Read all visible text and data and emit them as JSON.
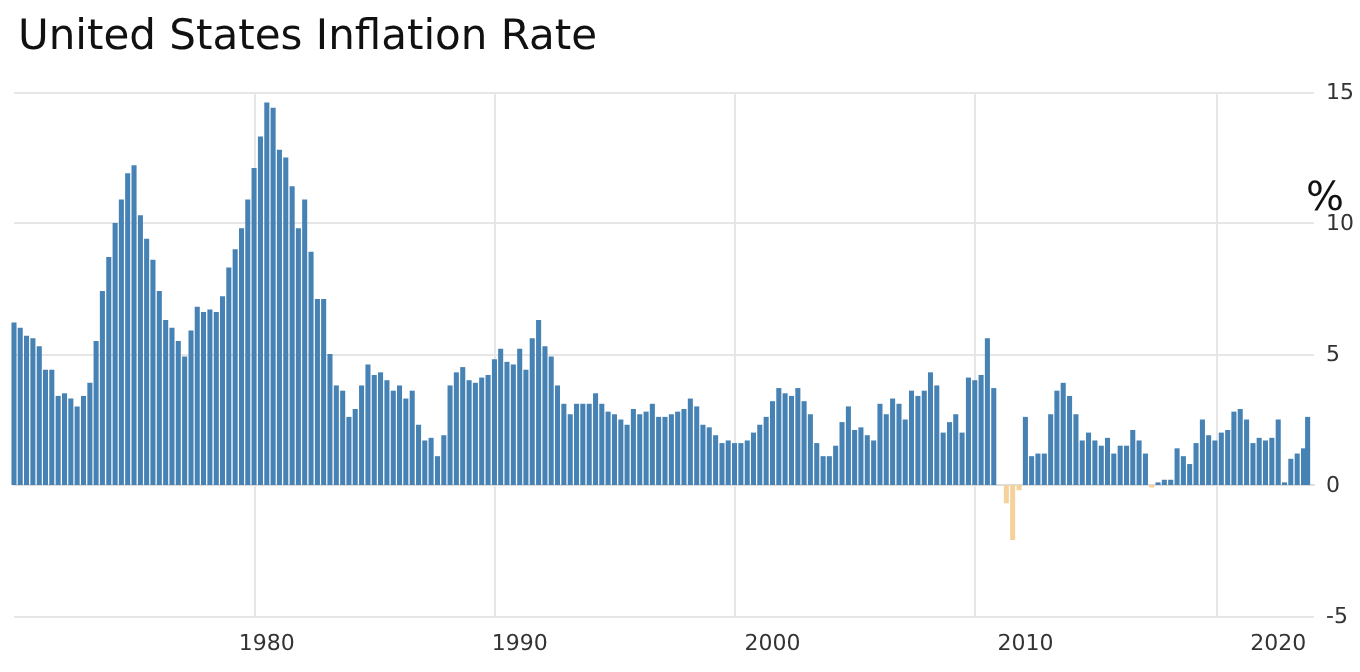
{
  "chart_data": {
    "type": "bar",
    "title": "United States Inflation Rate",
    "ylabel": "%",
    "x": [
      "1970-01",
      "1970-04",
      "1970-07",
      "1970-10",
      "1971-01",
      "1971-04",
      "1971-07",
      "1971-10",
      "1972-01",
      "1972-04",
      "1972-07",
      "1972-10",
      "1973-01",
      "1973-04",
      "1973-07",
      "1973-10",
      "1974-01",
      "1974-04",
      "1974-07",
      "1974-10",
      "1975-01",
      "1975-04",
      "1975-07",
      "1975-10",
      "1976-01",
      "1976-04",
      "1976-07",
      "1976-10",
      "1977-01",
      "1977-04",
      "1977-07",
      "1977-10",
      "1978-01",
      "1978-04",
      "1978-07",
      "1978-10",
      "1979-01",
      "1979-04",
      "1979-07",
      "1979-10",
      "1980-01",
      "1980-04",
      "1980-07",
      "1980-10",
      "1981-01",
      "1981-04",
      "1981-07",
      "1981-10",
      "1982-01",
      "1982-04",
      "1982-07",
      "1982-10",
      "1983-01",
      "1983-04",
      "1983-07",
      "1983-10",
      "1984-01",
      "1984-04",
      "1984-07",
      "1984-10",
      "1985-01",
      "1985-04",
      "1985-07",
      "1985-10",
      "1986-01",
      "1986-04",
      "1986-07",
      "1986-10",
      "1987-01",
      "1987-04",
      "1987-07",
      "1987-10",
      "1988-01",
      "1988-04",
      "1988-07",
      "1988-10",
      "1989-01",
      "1989-04",
      "1989-07",
      "1989-10",
      "1990-01",
      "1990-04",
      "1990-07",
      "1990-10",
      "1991-01",
      "1991-04",
      "1991-07",
      "1991-10",
      "1992-01",
      "1992-04",
      "1992-07",
      "1992-10",
      "1993-01",
      "1993-04",
      "1993-07",
      "1993-10",
      "1994-01",
      "1994-04",
      "1994-07",
      "1994-10",
      "1995-01",
      "1995-04",
      "1995-07",
      "1995-10",
      "1996-01",
      "1996-04",
      "1996-07",
      "1996-10",
      "1997-01",
      "1997-04",
      "1997-07",
      "1997-10",
      "1998-01",
      "1998-04",
      "1998-07",
      "1998-10",
      "1999-01",
      "1999-04",
      "1999-07",
      "1999-10",
      "2000-01",
      "2000-04",
      "2000-07",
      "2000-10",
      "2001-01",
      "2001-04",
      "2001-07",
      "2001-10",
      "2002-01",
      "2002-04",
      "2002-07",
      "2002-10",
      "2003-01",
      "2003-04",
      "2003-07",
      "2003-10",
      "2004-01",
      "2004-04",
      "2004-07",
      "2004-10",
      "2005-01",
      "2005-04",
      "2005-07",
      "2005-10",
      "2006-01",
      "2006-04",
      "2006-07",
      "2006-10",
      "2007-01",
      "2007-04",
      "2007-07",
      "2007-10",
      "2008-01",
      "2008-04",
      "2008-07",
      "2008-10",
      "2009-01",
      "2009-04",
      "2009-07",
      "2009-10",
      "2010-01",
      "2010-04",
      "2010-07",
      "2010-10",
      "2011-01",
      "2011-04",
      "2011-07",
      "2011-10",
      "2012-01",
      "2012-04",
      "2012-07",
      "2012-10",
      "2013-01",
      "2013-04",
      "2013-07",
      "2013-10",
      "2014-01",
      "2014-04",
      "2014-07",
      "2014-10",
      "2015-01",
      "2015-04",
      "2015-07",
      "2015-10",
      "2016-01",
      "2016-04",
      "2016-07",
      "2016-10",
      "2017-01",
      "2017-04",
      "2017-07",
      "2017-10",
      "2018-01",
      "2018-04",
      "2018-07",
      "2018-10",
      "2019-01",
      "2019-04",
      "2019-07",
      "2019-10",
      "2020-01",
      "2020-04",
      "2020-07",
      "2020-10",
      "2021-01",
      "2021-03"
    ],
    "series": [
      {
        "color": "#4682b4",
        "values": [
          6.2,
          6.0,
          5.7,
          5.6,
          5.3,
          4.4,
          4.4,
          3.4,
          3.5,
          3.3,
          3.0,
          3.4,
          3.9,
          5.5,
          7.4,
          8.7,
          10.0,
          10.9,
          11.9,
          12.2,
          10.3,
          9.4,
          8.6,
          7.4,
          6.3,
          6.0,
          5.5,
          4.9,
          5.9,
          6.8,
          6.6,
          6.7,
          6.6,
          7.2,
          8.3,
          9.0,
          9.8,
          10.9,
          12.1,
          13.3,
          14.6,
          14.4,
          12.8,
          12.5,
          11.4,
          9.8,
          10.9,
          8.9,
          7.1,
          7.1,
          5.0,
          3.8,
          3.6,
          2.6,
          2.9,
          3.8,
          4.6,
          4.2,
          4.3,
          4.0,
          3.6,
          3.8,
          3.3,
          3.6,
          2.3,
          1.7,
          1.8,
          1.1,
          1.9,
          3.8,
          4.3,
          4.5,
          4.0,
          3.9,
          4.1,
          4.2,
          4.8,
          5.2,
          4.7,
          4.6,
          5.2,
          4.4,
          5.6,
          6.3,
          5.3,
          4.9,
          3.8,
          3.1,
          2.7,
          3.1,
          3.1,
          3.1,
          3.5,
          3.1,
          2.8,
          2.7,
          2.5,
          2.3,
          2.9,
          2.7,
          2.8,
          3.1,
          2.6,
          2.6,
          2.7,
          2.8,
          2.9,
          3.3,
          3.0,
          2.3,
          2.2,
          1.9,
          1.6,
          1.7,
          1.6,
          1.6,
          1.7,
          2.0,
          2.3,
          2.6,
          3.2,
          3.7,
          3.5,
          3.4,
          3.7,
          3.2,
          2.7,
          1.6,
          1.1,
          1.1,
          1.5,
          2.4,
          3.0,
          2.1,
          2.2,
          1.9,
          1.7,
          3.1,
          2.7,
          3.3,
          3.1,
          2.5,
          3.6,
          3.4,
          3.6,
          4.3,
          3.8,
          2.0,
          2.4,
          2.7,
          2.0,
          4.1,
          4.0,
          4.2,
          5.6,
          3.7,
          0.0,
          null,
          null,
          null,
          2.6,
          1.1,
          1.2,
          1.2,
          2.7,
          3.6,
          3.9,
          3.4,
          2.7,
          1.7,
          2.0,
          1.7,
          1.5,
          1.8,
          1.2,
          1.5,
          1.5,
          2.1,
          1.7,
          1.2,
          null,
          0.1,
          0.2,
          0.2,
          1.4,
          1.1,
          0.8,
          1.6,
          2.5,
          1.9,
          1.7,
          2.0,
          2.1,
          2.8,
          2.9,
          2.5,
          1.6,
          1.8,
          1.7,
          1.8,
          2.5,
          0.1,
          1.0,
          1.2,
          1.4,
          2.6
        ]
      },
      {
        "color": "#f5d29b",
        "x": [
          "2009-04",
          "2009-07",
          "2009-10",
          "2015-01"
        ],
        "values": [
          -0.7,
          -2.1,
          -0.2,
          -0.1
        ]
      }
    ],
    "xlim": [
      "1970-01",
      "2021-06"
    ],
    "xticks": [
      "1980",
      "1990",
      "2000",
      "2010",
      "2020"
    ],
    "ylim": [
      -5,
      15
    ],
    "yticks": [
      -5,
      0,
      5,
      10,
      15
    ],
    "grid": true
  }
}
